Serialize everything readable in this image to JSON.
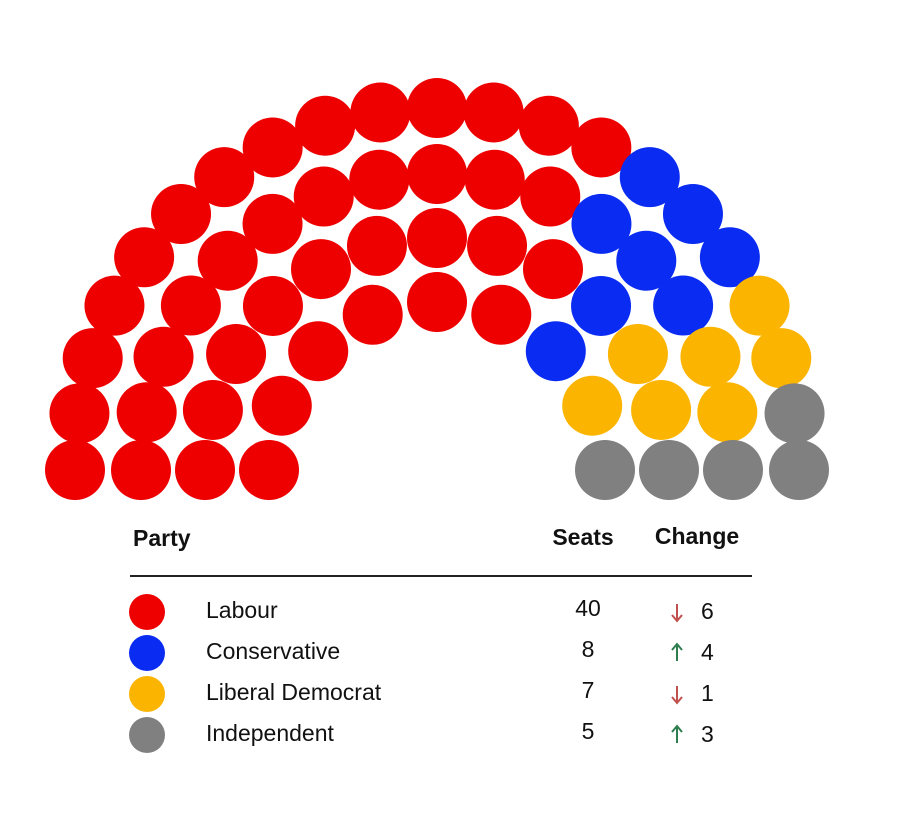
{
  "chart_data": {
    "type": "parliament",
    "headers": [
      "Party",
      "Seats",
      "Change"
    ],
    "categories": [
      "Labour",
      "Conservative",
      "Liberal Democrat",
      "Independent"
    ],
    "values": [
      40,
      8,
      7,
      5
    ],
    "colors": [
      "#ee0000",
      "#0a2cf2",
      "#fbb400",
      "#808080"
    ],
    "change": [
      -6,
      4,
      -1,
      3
    ],
    "change_labels": [
      "6",
      "4",
      "1",
      "3"
    ]
  }
}
